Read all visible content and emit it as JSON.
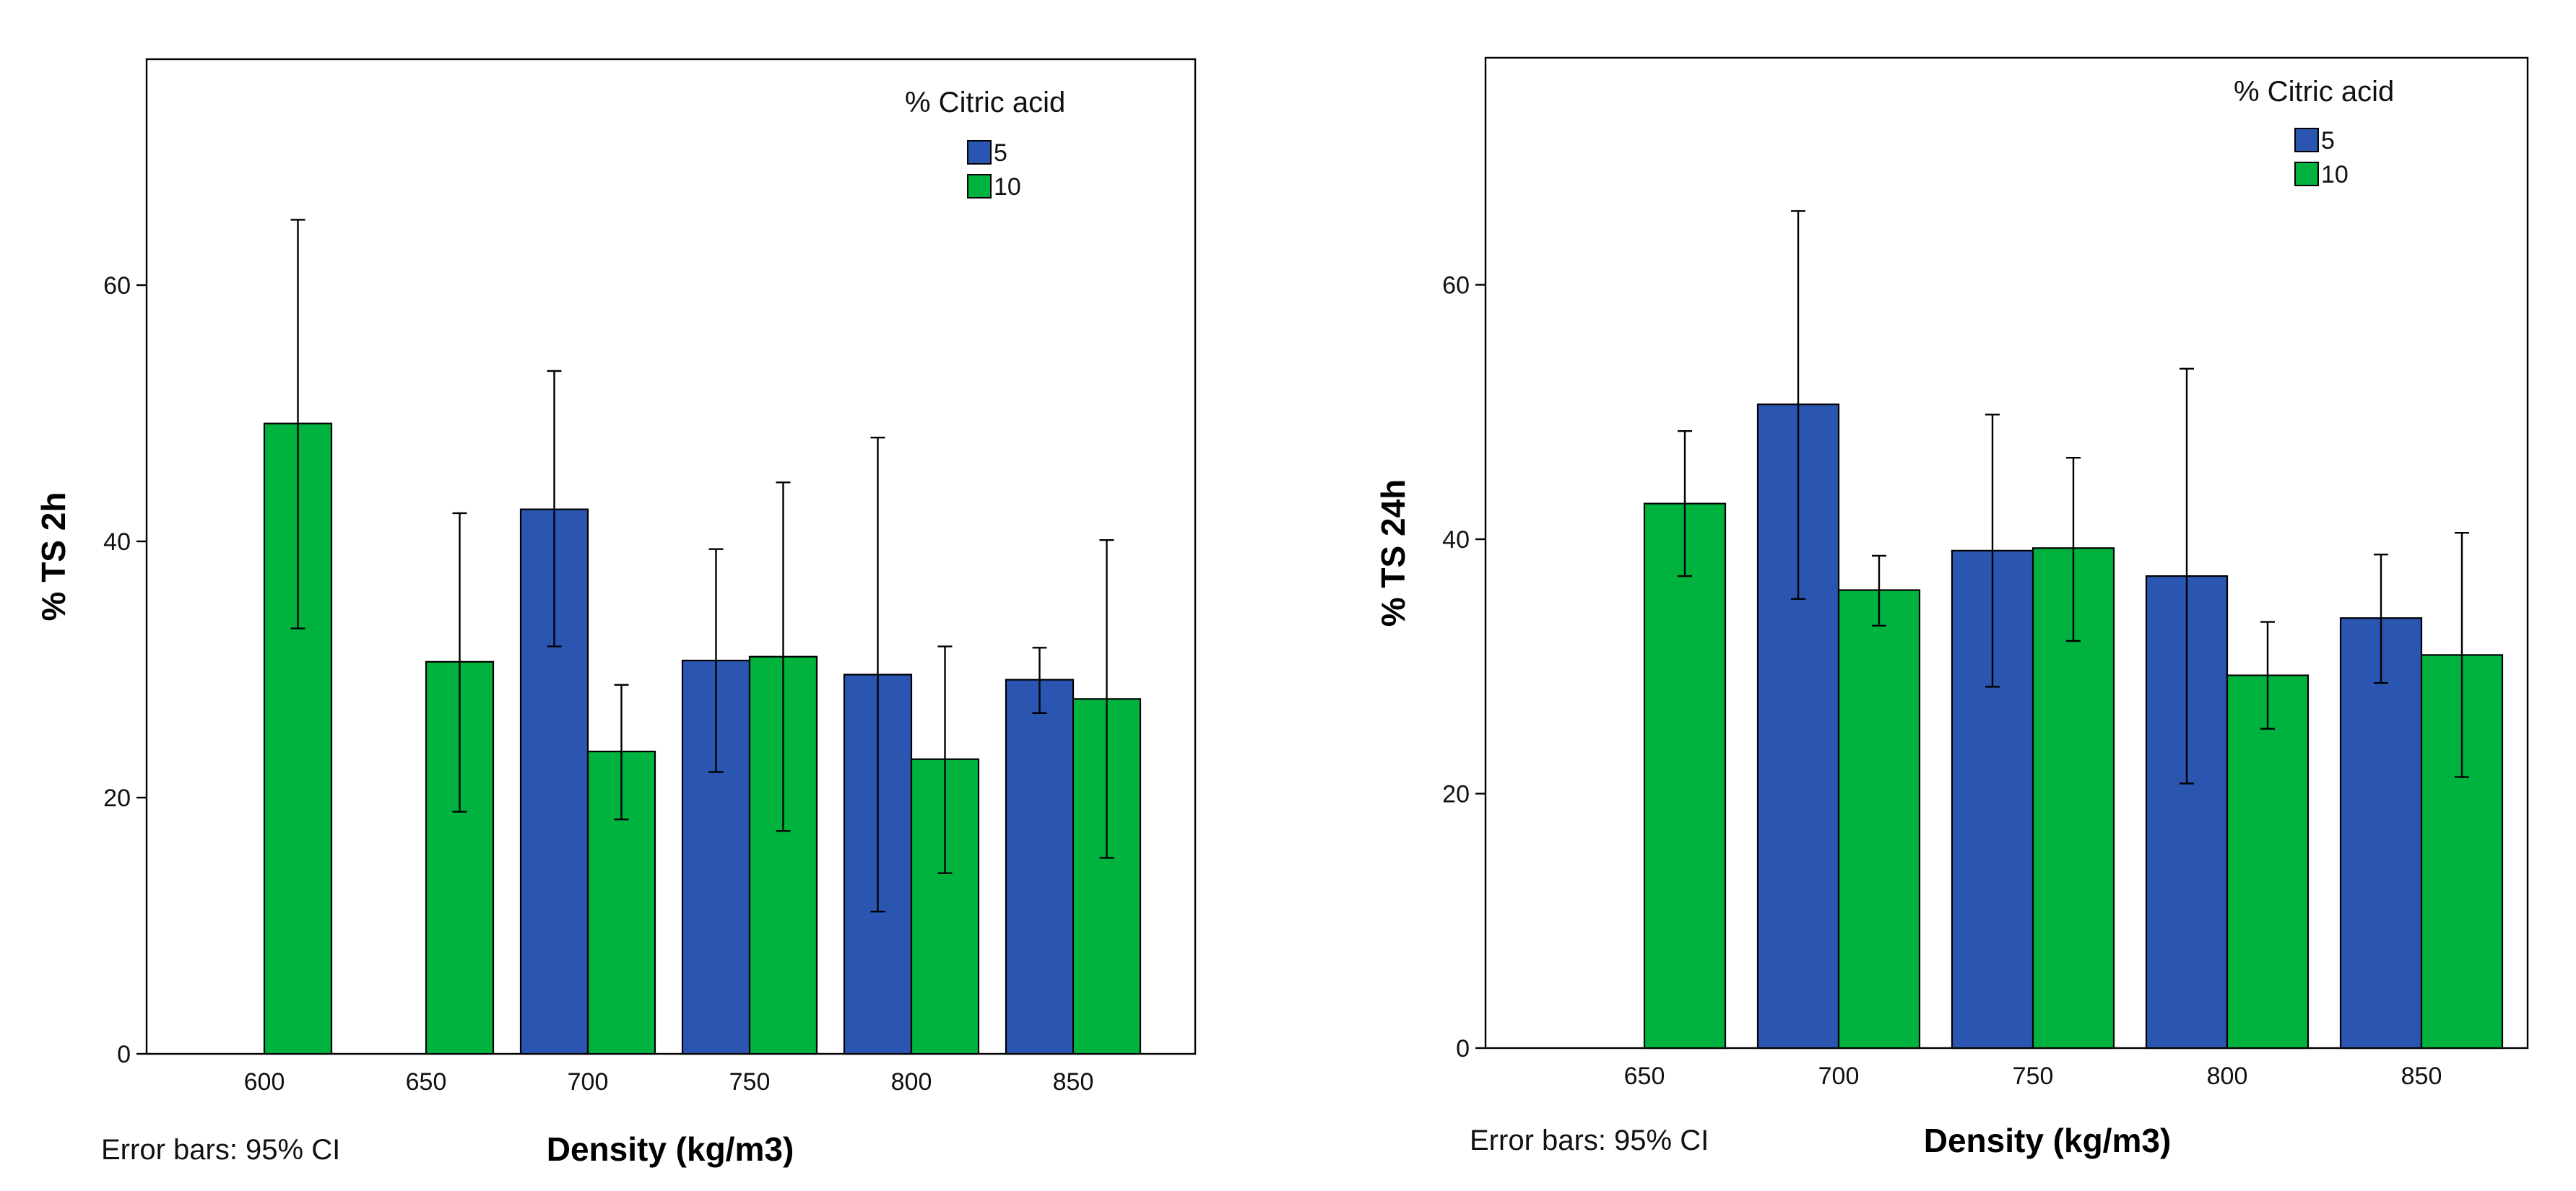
{
  "colors": {
    "5": "#2a56b2",
    "10": "#00b33e"
  },
  "chart_data": [
    {
      "type": "bar",
      "xlabel": "Density (kg/m3)",
      "ylabel": "% TS 2h",
      "note": "Error bars: 95% CI",
      "legend_title": "% Citric acid",
      "legend_position": "top-right",
      "grid": false,
      "ylim": [
        0,
        75
      ],
      "yticks": [
        0,
        20,
        40,
        60
      ],
      "categories": [
        "600",
        "650",
        "700",
        "750",
        "800",
        "850"
      ],
      "series": [
        {
          "name": "5",
          "values": [
            null,
            null,
            42.5,
            30.7,
            29.6,
            29.2
          ],
          "ci_low": [
            null,
            null,
            31.8,
            22.0,
            11.1,
            26.6
          ],
          "ci_high": [
            null,
            null,
            53.3,
            39.4,
            48.1,
            31.7
          ]
        },
        {
          "name": "10",
          "values": [
            49.2,
            30.6,
            23.6,
            31.0,
            23.0,
            27.7
          ],
          "ci_low": [
            33.2,
            18.9,
            18.3,
            17.4,
            14.1,
            15.3
          ],
          "ci_high": [
            65.1,
            42.2,
            28.8,
            44.6,
            31.8,
            40.1
          ]
        }
      ]
    },
    {
      "type": "bar",
      "xlabel": "Density (kg/m3)",
      "ylabel": "% TS 24h",
      "note": "Error bars: 95% CI",
      "legend_title": "% Citric acid",
      "legend_position": "top-right",
      "grid": false,
      "ylim": [
        0,
        78
      ],
      "yticks": [
        0,
        20,
        40,
        60
      ],
      "categories": [
        "650",
        "700",
        "750",
        "800",
        "850"
      ],
      "series": [
        {
          "name": "5",
          "values": [
            null,
            50.6,
            39.1,
            37.1,
            33.8
          ],
          "ci_low": [
            null,
            35.3,
            28.4,
            20.8,
            28.7
          ],
          "ci_high": [
            null,
            65.8,
            49.8,
            53.4,
            38.8
          ]
        },
        {
          "name": "10",
          "values": [
            42.8,
            36.0,
            39.3,
            29.3,
            30.9
          ],
          "ci_low": [
            37.1,
            33.2,
            32.0,
            25.1,
            21.3
          ],
          "ci_high": [
            48.5,
            38.7,
            46.4,
            33.5,
            40.5
          ]
        }
      ]
    }
  ]
}
